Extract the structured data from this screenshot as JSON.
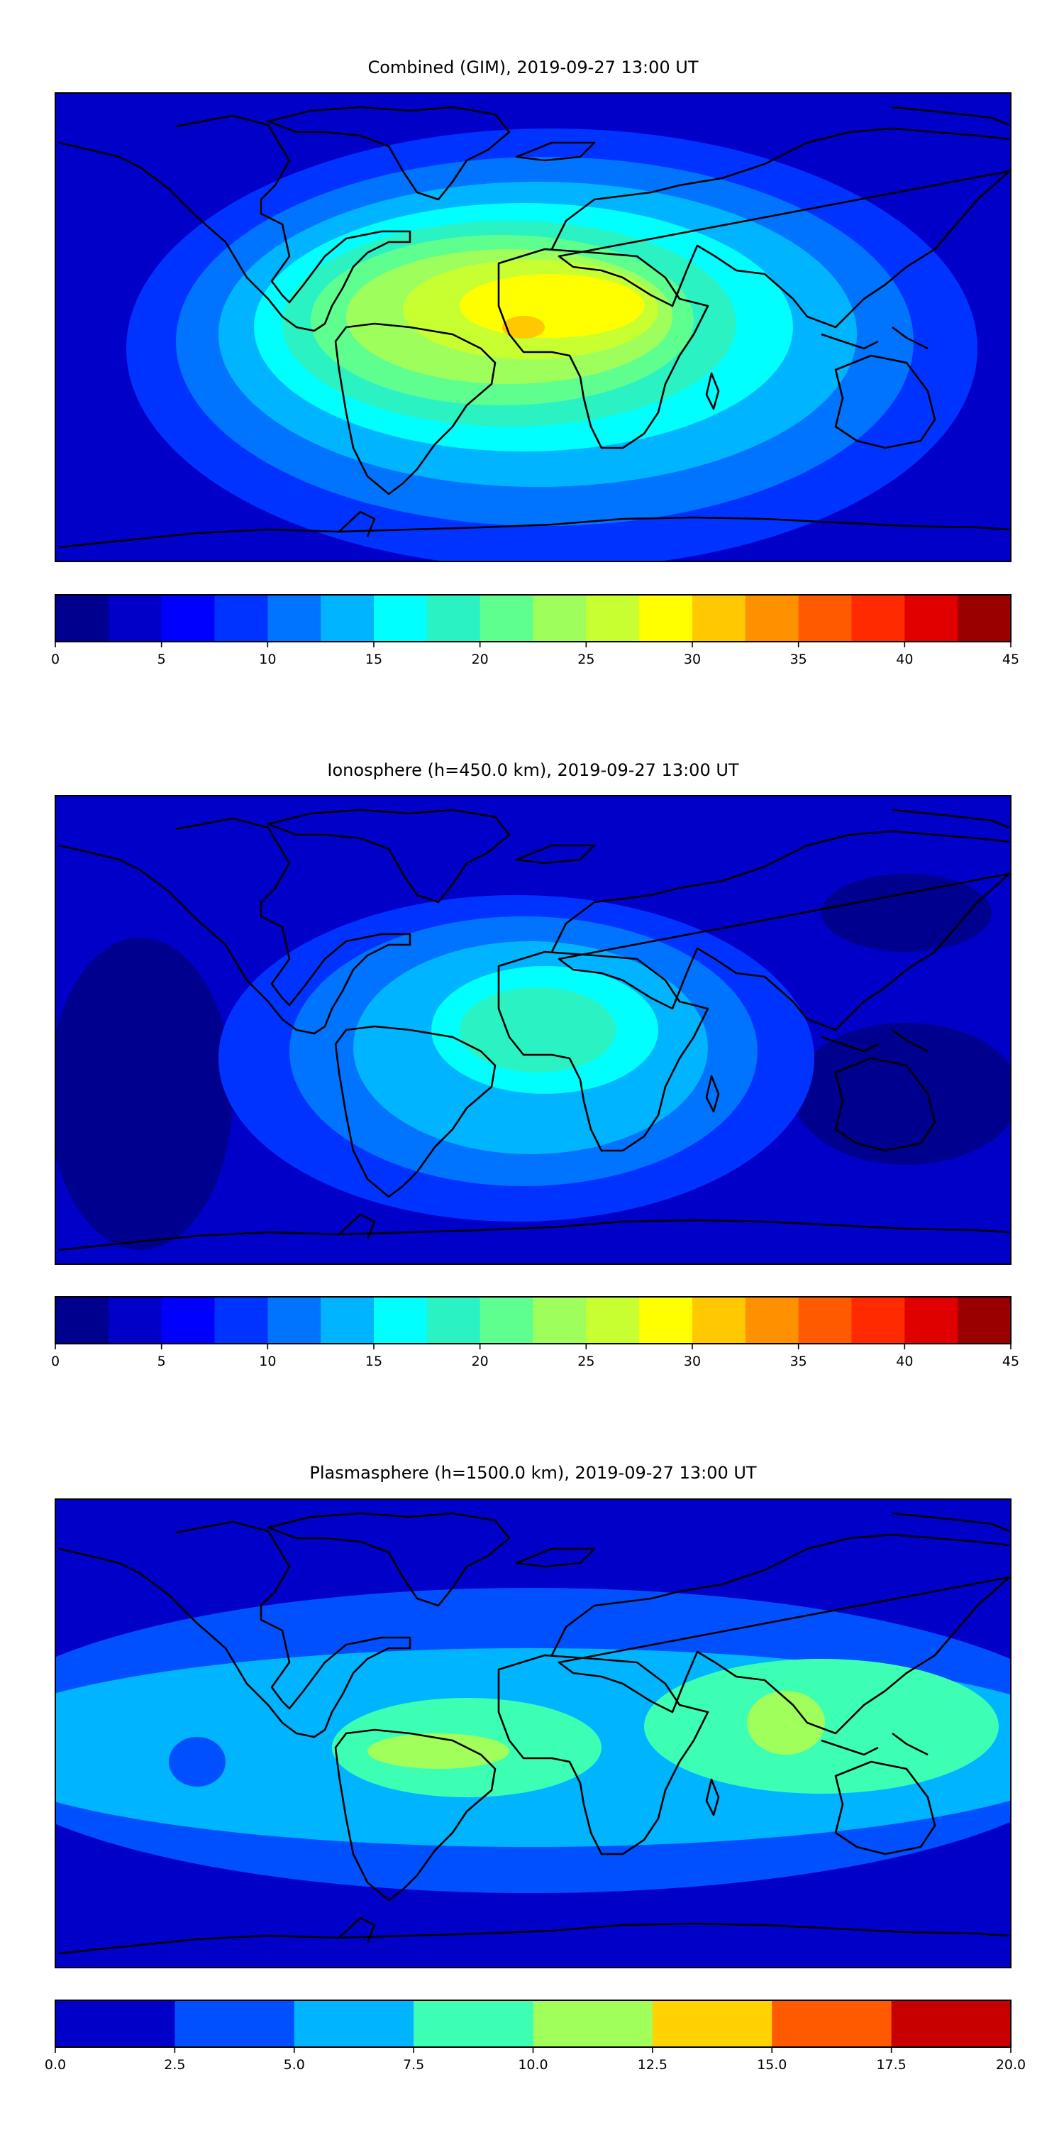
{
  "chart_data": [
    {
      "type": "heatmap",
      "title": "Combined (GIM), 2019-09-27 13:00 UT",
      "colorbar": {
        "vmin": 0,
        "vmax": 45,
        "step": 2.5,
        "tick_labels": [
          "0",
          "5",
          "10",
          "15",
          "20",
          "25",
          "30",
          "35",
          "40",
          "45"
        ],
        "colors": [
          "#00008f",
          "#0000c8",
          "#0000ff",
          "#0033ff",
          "#0073ff",
          "#00b4ff",
          "#00ffff",
          "#2bf2c2",
          "#5fff8f",
          "#9eff5c",
          "#c8ff30",
          "#ffff00",
          "#ffc800",
          "#ff9000",
          "#ff5a00",
          "#ff2a00",
          "#e00000",
          "#9a0000"
        ]
      }
    },
    {
      "type": "heatmap",
      "title": "Ionosphere  (h=450.0 km), 2019-09-27 13:00 UT",
      "colorbar": {
        "vmin": 0,
        "vmax": 45,
        "step": 2.5,
        "tick_labels": [
          "0",
          "5",
          "10",
          "15",
          "20",
          "25",
          "30",
          "35",
          "40",
          "45"
        ],
        "colors": [
          "#00008f",
          "#0000c8",
          "#0000ff",
          "#0033ff",
          "#0073ff",
          "#00b4ff",
          "#00ffff",
          "#2bf2c2",
          "#5fff8f",
          "#9eff5c",
          "#c8ff30",
          "#ffff00",
          "#ffc800",
          "#ff9000",
          "#ff5a00",
          "#ff2a00",
          "#e00000",
          "#9a0000"
        ]
      }
    },
    {
      "type": "heatmap",
      "title": "Plasmasphere (h=1500.0 km), 2019-09-27 13:00 UT",
      "colorbar": {
        "vmin": 0,
        "vmax": 20,
        "step": 2.5,
        "tick_labels": [
          "0.0",
          "2.5",
          "5.0",
          "7.5",
          "10.0",
          "12.5",
          "15.0",
          "17.5",
          "20.0"
        ],
        "colors": [
          "#0000c8",
          "#0050ff",
          "#00b4ff",
          "#3cffb4",
          "#a0ff5a",
          "#ffd200",
          "#ff5a00",
          "#c80000"
        ]
      }
    }
  ]
}
